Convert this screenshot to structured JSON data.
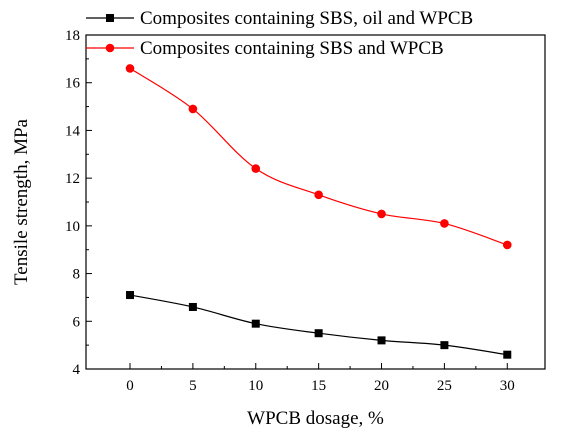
{
  "chart_data": {
    "type": "line",
    "title": "",
    "xlabel": "WPCB dosage, %",
    "ylabel": "Tensile strength, MPa",
    "x": [
      0,
      5,
      10,
      15,
      20,
      25,
      30
    ],
    "xticks": [
      "0",
      "5",
      "10",
      "15",
      "20",
      "25",
      "30"
    ],
    "yticks": [
      "4",
      "6",
      "8",
      "10",
      "12",
      "14",
      "16",
      "18"
    ],
    "xlim": [
      -3.5,
      33
    ],
    "ylim": [
      4,
      18
    ],
    "grid": false,
    "legend_position": "top",
    "series": [
      {
        "name": "Composites containing SBS, oil and WPCB",
        "color": "#000000",
        "marker": "square",
        "values": [
          7.1,
          6.6,
          5.9,
          5.5,
          5.2,
          5.0,
          4.6
        ]
      },
      {
        "name": "Composites containing SBS and WPCB",
        "color": "#ff0000",
        "marker": "circle",
        "values": [
          16.6,
          14.9,
          12.4,
          11.3,
          10.5,
          10.1,
          9.2
        ]
      }
    ]
  }
}
